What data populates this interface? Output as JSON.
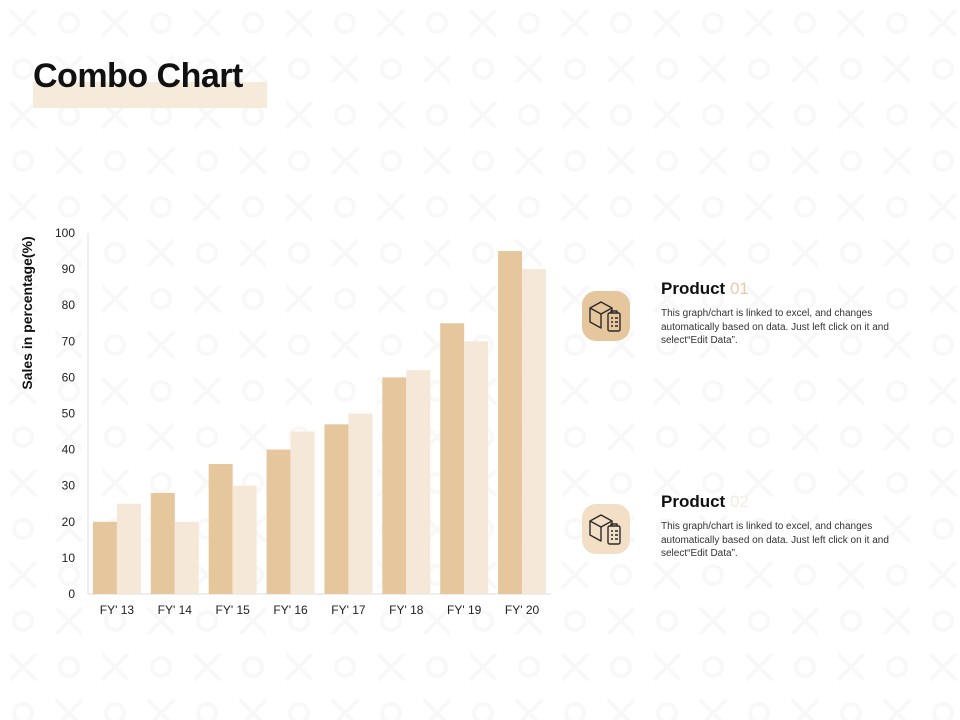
{
  "page": {
    "title": "Combo Chart"
  },
  "colors": {
    "series_1": "#e6c79d",
    "series_2": "#f6e8d8",
    "title_highlight": "#f6eadb",
    "icon_bg_1": "#e6c79d",
    "icon_bg_2": "#f2dfc6"
  },
  "chart_data": {
    "type": "bar",
    "categories": [
      "FY' 13",
      "FY' 14",
      "FY' 15",
      "FY' 16",
      "FY' 17",
      "FY' 18",
      "FY' 19",
      "FY' 20"
    ],
    "series": [
      {
        "values": [
          20,
          28,
          36,
          40,
          47,
          60,
          75,
          95
        ]
      },
      {
        "values": [
          25,
          20,
          30,
          45,
          50,
          62,
          70,
          90
        ]
      }
    ],
    "xlabel": "",
    "ylabel": "Sales in percentage(%)",
    "ylim": [
      0,
      100
    ],
    "yticks": [
      0,
      10,
      20,
      30,
      40,
      50,
      60,
      70,
      80,
      90,
      100
    ],
    "grid": false,
    "legend": "none"
  },
  "products": [
    {
      "label": "Product",
      "number": "01",
      "number_color": "#e8cba6",
      "description": "This graph/chart is linked to excel, and changes automatically based on data. Just left click on it and select“Edit Data”.",
      "icon": "package-checklist-icon"
    },
    {
      "label": "Product",
      "number": "02",
      "number_color": "#f6ebdd",
      "description": "This graph/chart is linked to excel, and changes automatically based on data. Just left click on it and select“Edit Data”.",
      "icon": "package-checklist-icon"
    }
  ]
}
